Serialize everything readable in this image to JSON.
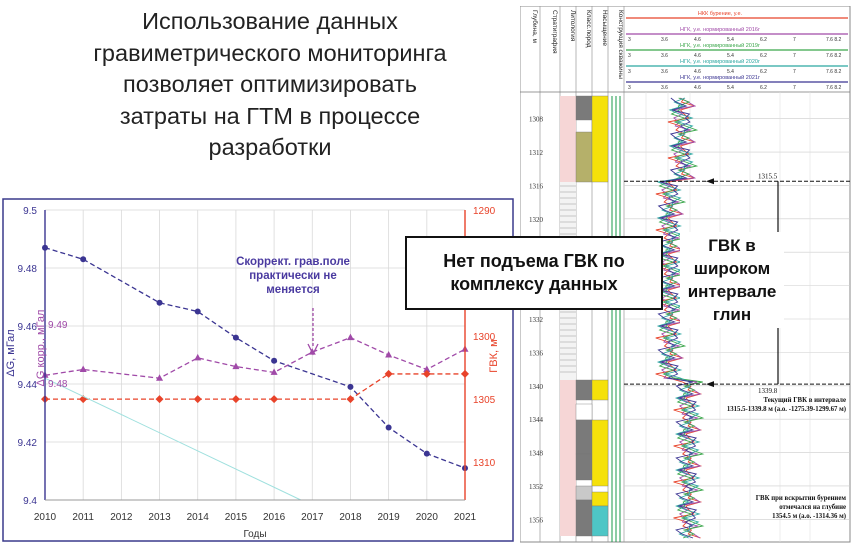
{
  "slide": {
    "title": "Использование данных\nгравиметрического мониторинга\nпозволяет оптимизировать\nзатраты на ГТМ в процессе\nразработки"
  },
  "callouts": {
    "main": "Нет подъема ГВК по\nкомплексу данных",
    "gvk": "ГВК в\nшироком\nинтервале\nглин"
  },
  "chart_data": {
    "type": "line",
    "x": [
      2010,
      2011,
      2012,
      2013,
      2014,
      2015,
      2016,
      2017,
      2018,
      2019,
      2020,
      2021
    ],
    "x_tick_labels": [
      "2010",
      "2011",
      "2012",
      "2013",
      "2014",
      "2015",
      "2016",
      "2017",
      "2018",
      "2019",
      "2020",
      "2021"
    ],
    "xlabel": "Годы",
    "ylabel_left": "ΔG, мГал",
    "ylabel_left_inner": "ΔG корр., мГал",
    "ylabel_right": "ГВК, м",
    "ylim_left": [
      9.4,
      9.5
    ],
    "yticks_left": [
      "9.4",
      "9.42",
      "9.44",
      "9.46",
      "9.48",
      "9.5"
    ],
    "ylim_right": [
      1290,
      1313
    ],
    "yticks_right": [
      "1290",
      "1295",
      "1300",
      "1305",
      "1310"
    ],
    "inner_labels": {
      "upper": "9.49",
      "lower": "9.48"
    },
    "annotation": "Скоррект. грав.поле\nпрактически не\nменяется",
    "grid": true,
    "series": [
      {
        "key": "dg",
        "axis": "left",
        "color": "#3b3592",
        "marker": "circle",
        "points": [
          [
            2010,
            9.487
          ],
          [
            2011,
            9.483
          ],
          [
            2013,
            9.468
          ],
          [
            2014,
            9.465
          ],
          [
            2015,
            9.456
          ],
          [
            2016,
            9.448
          ],
          [
            2018,
            9.439
          ],
          [
            2019,
            9.425
          ],
          [
            2020,
            9.416
          ],
          [
            2021,
            9.411
          ]
        ]
      },
      {
        "key": "dg_corr",
        "axis": "left",
        "color": "#a04aa8",
        "marker": "triangle",
        "points": [
          [
            2010,
            9.443
          ],
          [
            2011,
            9.445
          ],
          [
            2013,
            9.442
          ],
          [
            2014,
            9.449
          ],
          [
            2015,
            9.446
          ],
          [
            2016,
            9.444
          ],
          [
            2017,
            9.451
          ],
          [
            2018,
            9.456
          ],
          [
            2019,
            9.45
          ],
          [
            2020,
            9.445
          ],
          [
            2021,
            9.452
          ]
        ]
      },
      {
        "key": "gvk",
        "axis": "right",
        "color": "#e8432a",
        "marker": "diamond",
        "points": [
          [
            2010,
            1305
          ],
          [
            2011,
            1305
          ],
          [
            2013,
            1305
          ],
          [
            2014,
            1305
          ],
          [
            2015,
            1305
          ],
          [
            2016,
            1305
          ],
          [
            2018,
            1305
          ],
          [
            2019,
            1303
          ],
          [
            2020,
            1303
          ],
          [
            2021,
            1303
          ]
        ]
      },
      {
        "key": "trend",
        "axis": "left",
        "color": "#9fe0de",
        "marker": "none",
        "points": [
          [
            2010,
            9.442
          ],
          [
            2016.7,
            9.4
          ]
        ]
      }
    ]
  },
  "well_log": {
    "columns": [
      "Глубина, м",
      "Стратиграфия",
      "Литология",
      "Класс.пород",
      "Насыщение",
      "Конструкция скважины"
    ],
    "legend": [
      {
        "label": "НКК бурение, у.е.",
        "color": "#e8432a",
        "ticks": [
          "",
          "",
          "",
          "",
          "",
          ""
        ]
      },
      {
        "label": "НГК, у.е. нормированный 2016г",
        "color": "#a04aa8",
        "ticks": [
          "3",
          "3.6",
          "4.6",
          "5.4",
          "6.2",
          "7",
          "7.6 8.2"
        ]
      },
      {
        "label": "НГК, у.е. нормированный 2019г",
        "color": "#3aa64a",
        "ticks": [
          "3",
          "3.6",
          "4.6",
          "5.4",
          "6.2",
          "7",
          "7.6 8.2"
        ]
      },
      {
        "label": "НГК, у.е. нормированный 2020г",
        "color": "#2aa6a0",
        "ticks": [
          "3",
          "3.6",
          "4.6",
          "5.4",
          "6.2",
          "7",
          "7.6 8.2"
        ]
      },
      {
        "label": "НГК, у.е. нормированный 2021г",
        "color": "#3b3592",
        "ticks": [
          "3",
          "3.6",
          "4.6",
          "5.4",
          "6.2",
          "7",
          "7.6 8.2"
        ]
      }
    ],
    "depths": [
      "1308",
      "1312",
      "1316",
      "1320",
      "1324",
      "1328",
      "1332",
      "1336",
      "1340",
      "1344",
      "1348",
      "1352",
      "1356"
    ],
    "markers": {
      "upper": "1315.5",
      "lower": "1339.8",
      "current_gwc": "Текущий ГВК в интервале\n1315.5-1339.8 м (а.о. -1275.39-1299.67 м)",
      "drill_gwc": "ГВК при вскрытии бурением\nотмечался на глубине\n1354.5 м (а.о. -1314.36 м)"
    }
  }
}
